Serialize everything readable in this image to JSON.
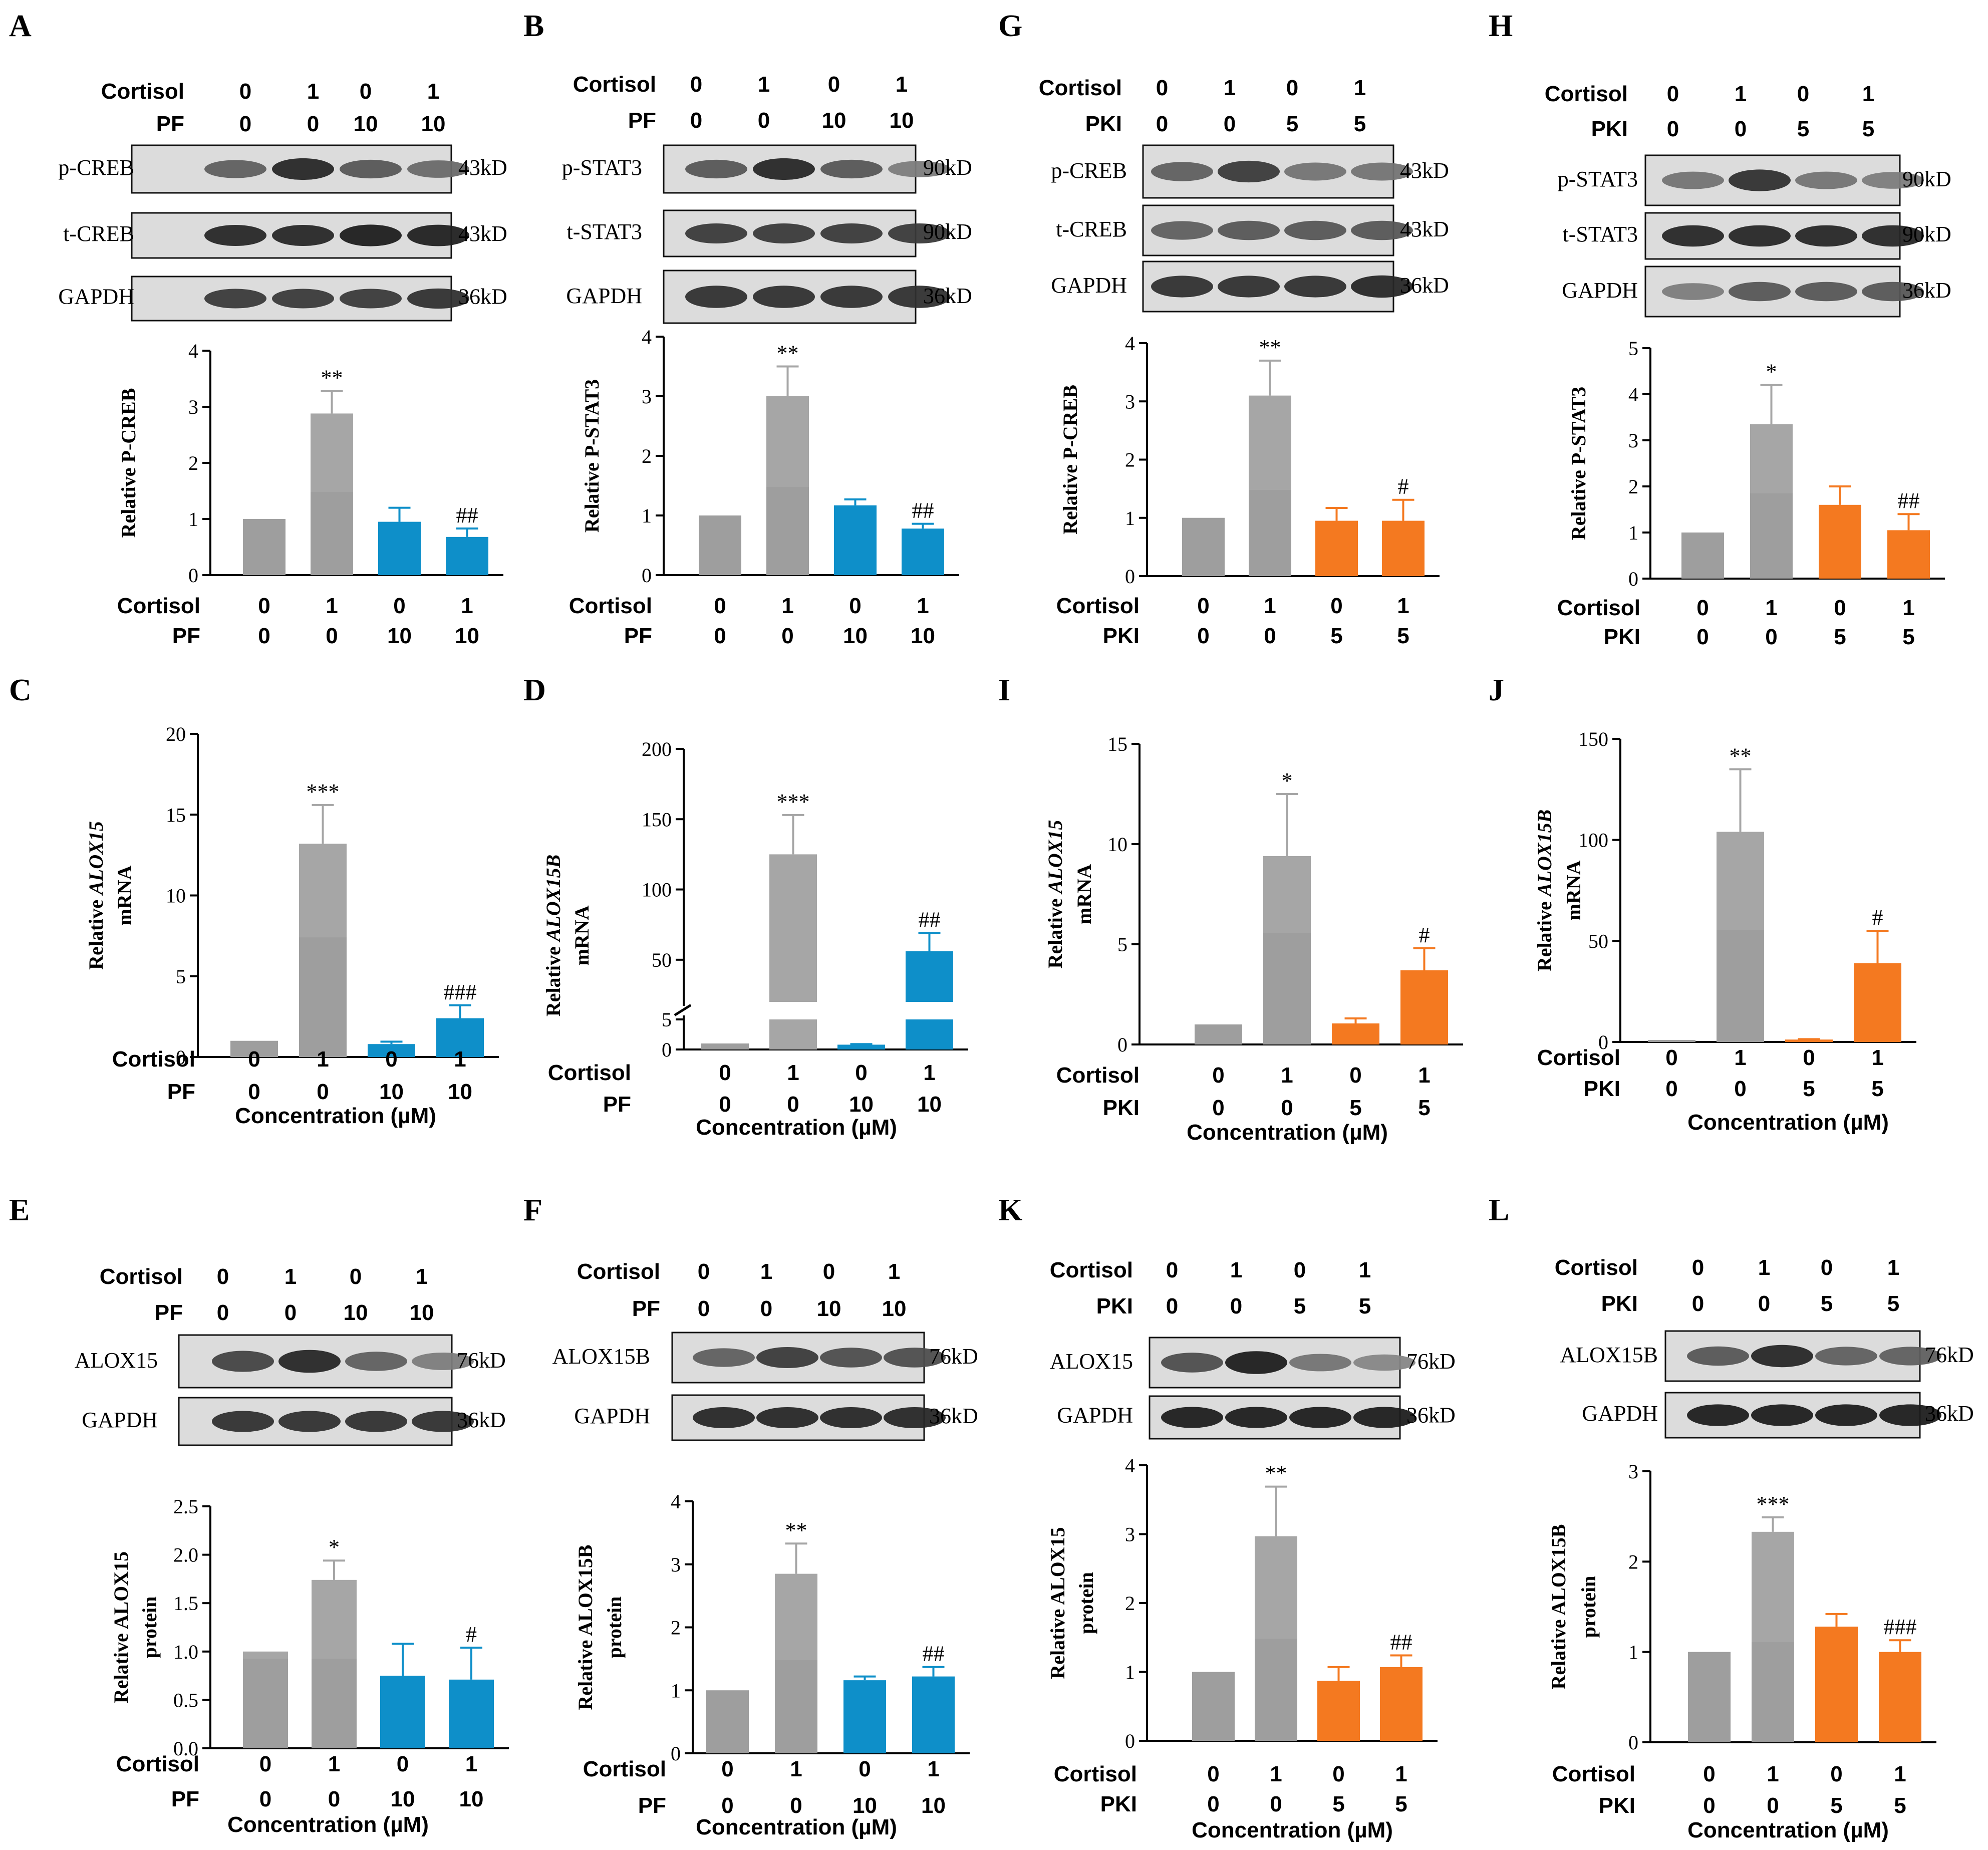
{
  "colors": {
    "gray": "#a6a6a6",
    "gray_dark": "#8f8f8f",
    "blue": "#0e8fc9",
    "orange": "#f47920",
    "axis": "#000000"
  },
  "conc_label": "Concentration (µM)",
  "panels": {
    "A": {
      "letter": "A",
      "fac1": "Cortisol",
      "fac2": "PF",
      "lane1": [
        "0",
        "1",
        "0",
        "1"
      ],
      "lane2": [
        "0",
        "0",
        "10",
        "10"
      ],
      "blots": [
        {
          "name": "p-CREB",
          "kd": "43kD",
          "intensity": [
            0.55,
            0.85,
            0.6,
            0.5
          ]
        },
        {
          "name": "t-CREB",
          "kd": "43kD",
          "intensity": [
            0.85,
            0.85,
            0.9,
            0.88
          ]
        },
        {
          "name": "GAPDH",
          "kd": "36kD",
          "intensity": [
            0.75,
            0.75,
            0.75,
            0.8
          ]
        }
      ]
    },
    "B": {
      "letter": "B",
      "fac1": "Cortisol",
      "fac2": "PF",
      "lane1": [
        "0",
        "1",
        "0",
        "1"
      ],
      "lane2": [
        "0",
        "0",
        "10",
        "10"
      ],
      "blots": [
        {
          "name": "p-STAT3",
          "kd": "90kD",
          "intensity": [
            0.6,
            0.85,
            0.6,
            0.4
          ]
        },
        {
          "name": "t-STAT3",
          "kd": "90kD",
          "intensity": [
            0.75,
            0.75,
            0.75,
            0.75
          ]
        },
        {
          "name": "GAPDH",
          "kd": "36kD",
          "intensity": [
            0.8,
            0.8,
            0.8,
            0.8
          ]
        }
      ]
    },
    "G": {
      "letter": "G",
      "fac1": "Cortisol",
      "fac2": "PKI",
      "lane1": [
        "0",
        "1",
        "0",
        "1"
      ],
      "lane2": [
        "0",
        "0",
        "5",
        "5"
      ],
      "blots": [
        {
          "name": "p-CREB",
          "kd": "43kD",
          "intensity": [
            0.55,
            0.75,
            0.45,
            0.45
          ]
        },
        {
          "name": "t-CREB",
          "kd": "43kD",
          "intensity": [
            0.55,
            0.6,
            0.6,
            0.6
          ]
        },
        {
          "name": "GAPDH",
          "kd": "36kD",
          "intensity": [
            0.8,
            0.8,
            0.8,
            0.85
          ]
        }
      ]
    },
    "H": {
      "letter": "H",
      "fac1": "Cortisol",
      "fac2": "PKI",
      "lane1": [
        "0",
        "1",
        "0",
        "1"
      ],
      "lane2": [
        "0",
        "0",
        "5",
        "5"
      ],
      "blots": [
        {
          "name": "p-STAT3",
          "kd": "90kD",
          "intensity": [
            0.45,
            0.8,
            0.45,
            0.4
          ]
        },
        {
          "name": "t-STAT3",
          "kd": "90kD",
          "intensity": [
            0.85,
            0.85,
            0.85,
            0.85
          ]
        },
        {
          "name": "GAPDH",
          "kd": "36kD",
          "intensity": [
            0.4,
            0.6,
            0.6,
            0.6
          ]
        }
      ]
    },
    "C": {
      "letter": "C"
    },
    "D": {
      "letter": "D"
    },
    "I": {
      "letter": "I"
    },
    "J": {
      "letter": "J"
    },
    "E": {
      "letter": "E",
      "fac1": "Cortisol",
      "fac2": "PF",
      "lane1": [
        "0",
        "1",
        "0",
        "1"
      ],
      "lane2": [
        "0",
        "0",
        "10",
        "10"
      ],
      "blots": [
        {
          "name": "ALOX15",
          "kd": "76kD",
          "intensity": [
            0.7,
            0.85,
            0.55,
            0.4
          ]
        },
        {
          "name": "GAPDH",
          "kd": "36kD",
          "intensity": [
            0.8,
            0.8,
            0.8,
            0.8
          ]
        }
      ]
    },
    "F": {
      "letter": "F",
      "fac1": "Cortisol",
      "fac2": "PF",
      "lane1": [
        "0",
        "1",
        "0",
        "1"
      ],
      "lane2": [
        "0",
        "0",
        "10",
        "10"
      ],
      "blots": [
        {
          "name": "ALOX15B",
          "kd": "76kD",
          "intensity": [
            0.55,
            0.75,
            0.65,
            0.65
          ]
        },
        {
          "name": "GAPDH",
          "kd": "36kD",
          "intensity": [
            0.85,
            0.85,
            0.85,
            0.85
          ]
        }
      ]
    },
    "K": {
      "letter": "K",
      "fac1": "Cortisol",
      "fac2": "PKI",
      "lane1": [
        "0",
        "1",
        "0",
        "1"
      ],
      "lane2": [
        "0",
        "0",
        "5",
        "5"
      ],
      "blots": [
        {
          "name": "ALOX15",
          "kd": "76kD",
          "intensity": [
            0.65,
            0.9,
            0.45,
            0.35
          ]
        },
        {
          "name": "GAPDH",
          "kd": "36kD",
          "intensity": [
            0.9,
            0.9,
            0.9,
            0.9
          ]
        }
      ]
    },
    "L": {
      "letter": "L",
      "fac1": "Cortisol",
      "fac2": "PKI",
      "lane1": [
        "0",
        "1",
        "0",
        "1"
      ],
      "lane2": [
        "0",
        "0",
        "5",
        "5"
      ],
      "blots": [
        {
          "name": "ALOX15B",
          "kd": "76kD",
          "intensity": [
            0.6,
            0.85,
            0.55,
            0.55
          ]
        },
        {
          "name": "GAPDH",
          "kd": "36kD",
          "intensity": [
            0.9,
            0.9,
            0.9,
            0.9
          ]
        }
      ]
    }
  },
  "chart_data": [
    {
      "panel": "A",
      "type": "bar",
      "ylabel": "Relative P-CREB",
      "ylim": [
        0,
        4
      ],
      "yticks": [
        0,
        1,
        2,
        3,
        4
      ],
      "ytick_labels": [
        "0",
        "1",
        "2",
        "3",
        "4"
      ],
      "values": [
        1,
        2.88,
        0.95,
        0.68
      ],
      "errors": [
        0,
        0.4,
        0.25,
        0.15
      ],
      "annotations": [
        "",
        "**",
        "",
        "##"
      ],
      "colors": [
        "gray",
        "gray",
        "blue",
        "blue"
      ],
      "factor1": {
        "label": "Cortisol",
        "values": [
          "0",
          "1",
          "0",
          "1"
        ]
      },
      "factor2": {
        "label": "PF",
        "values": [
          "0",
          "0",
          "10",
          "10"
        ]
      },
      "xlabel": ""
    },
    {
      "panel": "B",
      "type": "bar",
      "ylabel": "Relative P-STAT3",
      "ylim": [
        0,
        4
      ],
      "yticks": [
        0,
        1,
        2,
        3,
        4
      ],
      "ytick_labels": [
        "0",
        "1",
        "2",
        "3",
        "4"
      ],
      "values": [
        1,
        3.0,
        1.17,
        0.78
      ],
      "errors": [
        0,
        0.5,
        0.1,
        0.08
      ],
      "annotations": [
        "",
        "**",
        "",
        "##"
      ],
      "colors": [
        "gray",
        "gray",
        "blue",
        "blue"
      ],
      "factor1": {
        "label": "Cortisol",
        "values": [
          "0",
          "1",
          "0",
          "1"
        ]
      },
      "factor2": {
        "label": "PF",
        "values": [
          "0",
          "0",
          "10",
          "10"
        ]
      },
      "xlabel": ""
    },
    {
      "panel": "G",
      "type": "bar",
      "ylabel": "Relative P-CREB",
      "ylim": [
        0,
        4
      ],
      "yticks": [
        0,
        1,
        2,
        3,
        4
      ],
      "ytick_labels": [
        "0",
        "1",
        "2",
        "3",
        "4"
      ],
      "values": [
        1,
        3.1,
        0.95,
        0.95
      ],
      "errors": [
        0,
        0.6,
        0.22,
        0.36
      ],
      "annotations": [
        "",
        "**",
        "",
        "#"
      ],
      "colors": [
        "gray",
        "gray",
        "orange",
        "orange"
      ],
      "factor1": {
        "label": "Cortisol",
        "values": [
          "0",
          "1",
          "0",
          "1"
        ]
      },
      "factor2": {
        "label": "PKI",
        "values": [
          "0",
          "0",
          "5",
          "5"
        ]
      },
      "xlabel": ""
    },
    {
      "panel": "H",
      "type": "bar",
      "ylabel": "Relative P-STAT3",
      "ylim": [
        0,
        5
      ],
      "yticks": [
        0,
        1,
        2,
        3,
        4,
        5
      ],
      "ytick_labels": [
        "0",
        "1",
        "2",
        "3",
        "4",
        "5"
      ],
      "values": [
        1,
        3.35,
        1.6,
        1.05
      ],
      "errors": [
        0,
        0.85,
        0.4,
        0.35
      ],
      "annotations": [
        "",
        "*",
        "",
        "##"
      ],
      "colors": [
        "gray",
        "gray",
        "orange",
        "orange"
      ],
      "factor1": {
        "label": "Cortisol",
        "values": [
          "0",
          "1",
          "0",
          "1"
        ]
      },
      "factor2": {
        "label": "PKI",
        "values": [
          "0",
          "0",
          "5",
          "5"
        ]
      },
      "xlabel": ""
    },
    {
      "panel": "C",
      "type": "bar",
      "ylabel_prefix": "Relative ",
      "ylabel_gene": "ALOX15",
      "ylabel_line2": "mRNA",
      "ylim": [
        0,
        20
      ],
      "yticks": [
        0,
        5,
        10,
        15,
        20
      ],
      "ytick_labels": [
        "0",
        "5",
        "10",
        "15",
        "20"
      ],
      "values": [
        1,
        13.2,
        0.8,
        2.4
      ],
      "errors": [
        0,
        2.4,
        0.15,
        0.8
      ],
      "annotations": [
        "",
        "***",
        "",
        "###"
      ],
      "colors": [
        "gray",
        "gray",
        "blue",
        "blue"
      ],
      "factor1": {
        "label": "Cortisol",
        "values": [
          "0",
          "1",
          "0",
          "1"
        ]
      },
      "factor2": {
        "label": "PF",
        "values": [
          "0",
          "0",
          "10",
          "10"
        ]
      },
      "xlabel": "Concentration (µM)"
    },
    {
      "panel": "D",
      "type": "bar",
      "broken_axis": true,
      "lower_range": [
        0,
        5
      ],
      "upper_range": [
        20,
        200
      ],
      "ylabel_prefix": "Relative ",
      "ylabel_gene": "ALOX15B",
      "ylabel_line2": "mRNA",
      "yticks": [
        0,
        5,
        50,
        100,
        150,
        200
      ],
      "ytick_labels": [
        "0",
        "5",
        "50",
        "100",
        "150",
        "200"
      ],
      "values": [
        1,
        125,
        0.8,
        56
      ],
      "errors": [
        0,
        28,
        0.1,
        13
      ],
      "annotations": [
        "",
        "***",
        "",
        "##"
      ],
      "colors": [
        "gray",
        "gray",
        "blue",
        "blue"
      ],
      "factor1": {
        "label": "Cortisol",
        "values": [
          "0",
          "1",
          "0",
          "1"
        ]
      },
      "factor2": {
        "label": "PF",
        "values": [
          "0",
          "0",
          "10",
          "10"
        ]
      },
      "xlabel": "Concentration (µM)"
    },
    {
      "panel": "I",
      "type": "bar",
      "ylabel_prefix": "Relative ",
      "ylabel_gene": "ALOX15",
      "ylabel_line2": "mRNA",
      "ylim": [
        0,
        15
      ],
      "yticks": [
        0,
        5,
        10,
        15
      ],
      "ytick_labels": [
        "0",
        "5",
        "10",
        "15"
      ],
      "values": [
        1,
        9.4,
        1.05,
        3.7
      ],
      "errors": [
        0,
        3.1,
        0.25,
        1.1
      ],
      "annotations": [
        "",
        "*",
        "",
        "#"
      ],
      "colors": [
        "gray",
        "gray",
        "orange",
        "orange"
      ],
      "factor1": {
        "label": "Cortisol",
        "values": [
          "0",
          "1",
          "0",
          "1"
        ]
      },
      "factor2": {
        "label": "PKI",
        "values": [
          "0",
          "0",
          "5",
          "5"
        ]
      },
      "xlabel": "Concentration (µM)"
    },
    {
      "panel": "J",
      "type": "bar",
      "ylabel_prefix": "Relative ",
      "ylabel_gene": "ALOX15B",
      "ylabel_line2": "mRNA",
      "ylim": [
        0,
        150
      ],
      "yticks": [
        0,
        50,
        100,
        150
      ],
      "ytick_labels": [
        "0",
        "50",
        "100",
        "150"
      ],
      "values": [
        1,
        104,
        1.2,
        39
      ],
      "errors": [
        0,
        31,
        0.2,
        16
      ],
      "annotations": [
        "",
        "**",
        "",
        "#"
      ],
      "colors": [
        "gray",
        "gray",
        "orange",
        "orange"
      ],
      "factor1": {
        "label": "Cortisol",
        "values": [
          "0",
          "1",
          "0",
          "1"
        ]
      },
      "factor2": {
        "label": "PKI",
        "values": [
          "0",
          "0",
          "5",
          "5"
        ]
      },
      "xlabel": "Concentration (µM)"
    },
    {
      "panel": "E",
      "type": "bar",
      "ylabel": "Relative ALOX15",
      "ylabel_line2": "protein",
      "ylim": [
        0,
        2.5
      ],
      "yticks": [
        0,
        0.5,
        1,
        1.5,
        2,
        2.5
      ],
      "ytick_labels": [
        "0.0",
        "0.5",
        "1.0",
        "1.5",
        "2.0",
        "2.5"
      ],
      "values": [
        1,
        1.74,
        0.75,
        0.71
      ],
      "errors": [
        0,
        0.2,
        0.33,
        0.33
      ],
      "annotations": [
        "",
        "*",
        "",
        "#"
      ],
      "colors": [
        "gray",
        "gray",
        "blue",
        "blue"
      ],
      "factor1": {
        "label": "Cortisol",
        "values": [
          "0",
          "1",
          "0",
          "1"
        ]
      },
      "factor2": {
        "label": "PF",
        "values": [
          "0",
          "0",
          "10",
          "10"
        ]
      },
      "xlabel": "Concentration (µM)"
    },
    {
      "panel": "F",
      "type": "bar",
      "ylabel": "Relative ALOX15B",
      "ylabel_line2": "protein",
      "ylim": [
        0,
        4
      ],
      "yticks": [
        0,
        1,
        2,
        3,
        4
      ],
      "ytick_labels": [
        "0",
        "1",
        "2",
        "3",
        "4"
      ],
      "values": [
        1,
        2.85,
        1.16,
        1.22
      ],
      "errors": [
        0,
        0.48,
        0.06,
        0.15
      ],
      "annotations": [
        "",
        "**",
        "",
        "##"
      ],
      "colors": [
        "gray",
        "gray",
        "blue",
        "blue"
      ],
      "factor1": {
        "label": "Cortisol",
        "values": [
          "0",
          "1",
          "0",
          "1"
        ]
      },
      "factor2": {
        "label": "PF",
        "values": [
          "0",
          "0",
          "10",
          "10"
        ]
      },
      "xlabel": "Concentration (µM)"
    },
    {
      "panel": "K",
      "type": "bar",
      "ylabel": "Relative ALOX15",
      "ylabel_line2": "protein",
      "ylim": [
        0,
        4
      ],
      "yticks": [
        0,
        1,
        2,
        3,
        4
      ],
      "ytick_labels": [
        "0",
        "1",
        "2",
        "3",
        "4"
      ],
      "values": [
        1,
        2.97,
        0.87,
        1.07
      ],
      "errors": [
        0,
        0.72,
        0.2,
        0.17
      ],
      "annotations": [
        "",
        "**",
        "",
        "##"
      ],
      "colors": [
        "gray",
        "gray",
        "orange",
        "orange"
      ],
      "factor1": {
        "label": "Cortisol",
        "values": [
          "0",
          "1",
          "0",
          "1"
        ]
      },
      "factor2": {
        "label": "PKI",
        "values": [
          "0",
          "0",
          "5",
          "5"
        ]
      },
      "xlabel": "Concentration (µM)"
    },
    {
      "panel": "L",
      "type": "bar",
      "ylabel": "Relative ALOX15B",
      "ylabel_line2": "protein",
      "ylim": [
        0,
        3
      ],
      "yticks": [
        0,
        1,
        2,
        3
      ],
      "ytick_labels": [
        "0",
        "1",
        "2",
        "3"
      ],
      "values": [
        1,
        2.33,
        1.28,
        1.0
      ],
      "errors": [
        0,
        0.16,
        0.14,
        0.13
      ],
      "annotations": [
        "",
        "***",
        "",
        "###"
      ],
      "colors": [
        "gray",
        "gray",
        "orange",
        "orange"
      ],
      "factor1": {
        "label": "Cortisol",
        "values": [
          "0",
          "1",
          "0",
          "1"
        ]
      },
      "factor2": {
        "label": "PKI",
        "values": [
          "0",
          "0",
          "5",
          "5"
        ]
      },
      "xlabel": "Concentration (µM)"
    }
  ]
}
